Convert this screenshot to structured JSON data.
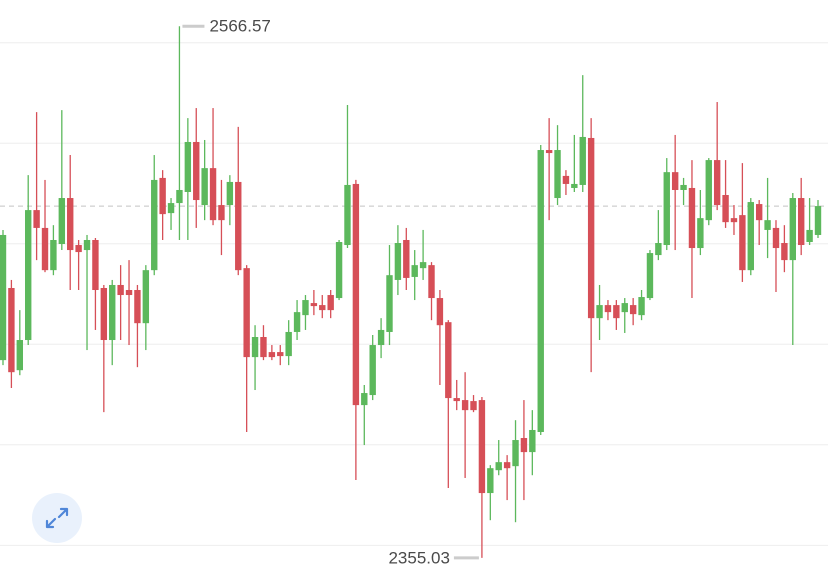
{
  "chart_data": {
    "type": "candlestick",
    "up_color": "#5cb85c",
    "down_color": "#d64f57",
    "ylim": [
      2347,
      2577
    ],
    "gridlines": [
      2360,
      2400,
      2440,
      2480,
      2520,
      2560
    ],
    "open": [
      2433.7,
      2462.4,
      2429.7,
      2441.7,
      2493.4,
      2486.3,
      2469.5,
      2479.9,
      2498.2,
      2479.5,
      2477.5,
      2481.5,
      2462.4,
      2441.7,
      2463.6,
      2461.6,
      2461.6,
      2448.4,
      2469.5,
      2506.2,
      2492.2,
      2496.2,
      2500.6,
      2520.5,
      2495.4,
      2510.1,
      2495.4,
      2495.4,
      2504.6,
      2470.3,
      2434.9,
      2442.9,
      2436.9,
      2436.9,
      2435.3,
      2444.9,
      2451.6,
      2456.4,
      2455.6,
      2459.6,
      2458.4,
      2479.5,
      2503.8,
      2415.8,
      2419.8,
      2439.7,
      2444.9,
      2465.6,
      2481.5,
      2466.8,
      2470.3,
      2471.5,
      2458.4,
      2448.8,
      2418.6,
      2417.8,
      2417.4,
      2417.8,
      2380.8,
      2389.9,
      2393.1,
      2391.5,
      2402.7,
      2397.1,
      2405.1,
      2517.3,
      2498.2,
      2507.0,
      2502.2,
      2503.4,
      2522.1,
      2450.4,
      2455.6,
      2455.6,
      2452.8,
      2455.6,
      2451.6,
      2458.4,
      2475.5,
      2479.5,
      2508.5,
      2501.4,
      2502.2,
      2478.3,
      2489.4,
      2513.3,
      2499.4,
      2490.2,
      2491.4,
      2469.5,
      2495.8,
      2485.5,
      2486.3,
      2480.3,
      2473.5,
      2498.2,
      2480.7,
      2483.5
    ],
    "high": [
      2485.5,
      2465.6,
      2453.6,
      2507.3,
      2532.4,
      2505.4,
      2487.4,
      2533.2,
      2515.3,
      2481.5,
      2483.5,
      2482.3,
      2463.6,
      2465.6,
      2471.5,
      2473.5,
      2463.6,
      2471.5,
      2515.3,
      2509.3,
      2498.2,
      2566.57,
      2530.0,
      2534.0,
      2521.3,
      2534.0,
      2505.4,
      2507.3,
      2526.5,
      2471.5,
      2447.6,
      2447.6,
      2439.7,
      2439.7,
      2449.6,
      2457.6,
      2459.6,
      2461.6,
      2459.6,
      2461.6,
      2481.5,
      2535.2,
      2505.4,
      2423.8,
      2443.7,
      2450.4,
      2479.5,
      2487.4,
      2486.3,
      2477.5,
      2485.5,
      2472.7,
      2461.6,
      2449.6,
      2425.8,
      2428.9,
      2419.8,
      2419.0,
      2391.9,
      2401.9,
      2395.9,
      2409.8,
      2417.8,
      2413.8,
      2519.3,
      2530.0,
      2527.2,
      2509.3,
      2523.3,
      2547.1,
      2530.0,
      2463.6,
      2457.6,
      2457.6,
      2458.4,
      2458.4,
      2461.6,
      2477.5,
      2493.4,
      2514.1,
      2523.3,
      2506.2,
      2513.3,
      2501.4,
      2514.1,
      2536.4,
      2513.3,
      2495.4,
      2512.1,
      2498.2,
      2497.4,
      2506.2,
      2489.4,
      2487.4,
      2500.2,
      2506.2,
      2498.2,
      2497.4
    ],
    "low": [
      2431.7,
      2422.6,
      2427.7,
      2439.7,
      2473.5,
      2468.7,
      2467.5,
      2477.5,
      2461.6,
      2461.6,
      2437.7,
      2445.7,
      2413.0,
      2431.7,
      2441.7,
      2439.7,
      2430.9,
      2437.7,
      2467.5,
      2481.5,
      2485.5,
      2481.5,
      2481.5,
      2486.3,
      2489.4,
      2487.4,
      2475.5,
      2487.4,
      2467.5,
      2405.1,
      2421.8,
      2433.7,
      2433.7,
      2431.7,
      2431.7,
      2441.7,
      2445.7,
      2451.6,
      2450.4,
      2450.4,
      2457.6,
      2478.3,
      2386.0,
      2399.9,
      2417.8,
      2434.5,
      2439.7,
      2459.6,
      2461.6,
      2457.6,
      2465.6,
      2449.6,
      2423.8,
      2382.8,
      2413.8,
      2386.8,
      2413.0,
      2355.03,
      2370.0,
      2387.9,
      2378.0,
      2369.2,
      2378.0,
      2387.9,
      2403.9,
      2489.4,
      2495.4,
      2499.4,
      2500.6,
      2500.6,
      2428.9,
      2441.7,
      2449.6,
      2445.7,
      2444.5,
      2447.6,
      2449.6,
      2457.6,
      2473.5,
      2477.5,
      2477.5,
      2495.4,
      2458.4,
      2475.5,
      2487.4,
      2493.4,
      2486.3,
      2483.5,
      2464.8,
      2467.5,
      2479.5,
      2474.3,
      2460.8,
      2468.7,
      2439.7,
      2475.5,
      2479.5,
      2482.3
    ],
    "close": [
      2483.5,
      2428.9,
      2441.7,
      2493.4,
      2486.3,
      2469.5,
      2481.5,
      2498.2,
      2477.5,
      2476.7,
      2481.5,
      2461.6,
      2441.7,
      2463.6,
      2459.6,
      2459.6,
      2448.4,
      2469.5,
      2505.4,
      2491.8,
      2496.2,
      2501.4,
      2520.5,
      2497.4,
      2510.1,
      2489.4,
      2489.4,
      2504.6,
      2469.5,
      2434.9,
      2442.9,
      2434.9,
      2434.9,
      2435.3,
      2444.9,
      2452.8,
      2457.6,
      2455.2,
      2453.6,
      2453.6,
      2480.7,
      2503.4,
      2415.8,
      2420.6,
      2439.7,
      2445.7,
      2467.5,
      2480.3,
      2466.4,
      2471.5,
      2472.7,
      2458.4,
      2447.6,
      2418.6,
      2417.4,
      2413.8,
      2413.8,
      2380.8,
      2390.7,
      2393.1,
      2390.7,
      2401.9,
      2397.1,
      2405.9,
      2517.3,
      2516.1,
      2517.3,
      2503.8,
      2503.8,
      2522.5,
      2450.4,
      2455.6,
      2452.8,
      2450.4,
      2456.4,
      2452.0,
      2458.8,
      2476.3,
      2480.3,
      2508.5,
      2501.4,
      2503.4,
      2478.3,
      2490.2,
      2513.3,
      2495.4,
      2488.6,
      2488.6,
      2469.5,
      2496.6,
      2489.4,
      2489.4,
      2478.3,
      2473.5,
      2498.2,
      2479.5,
      2485.5,
      2495.0
    ]
  }
}
